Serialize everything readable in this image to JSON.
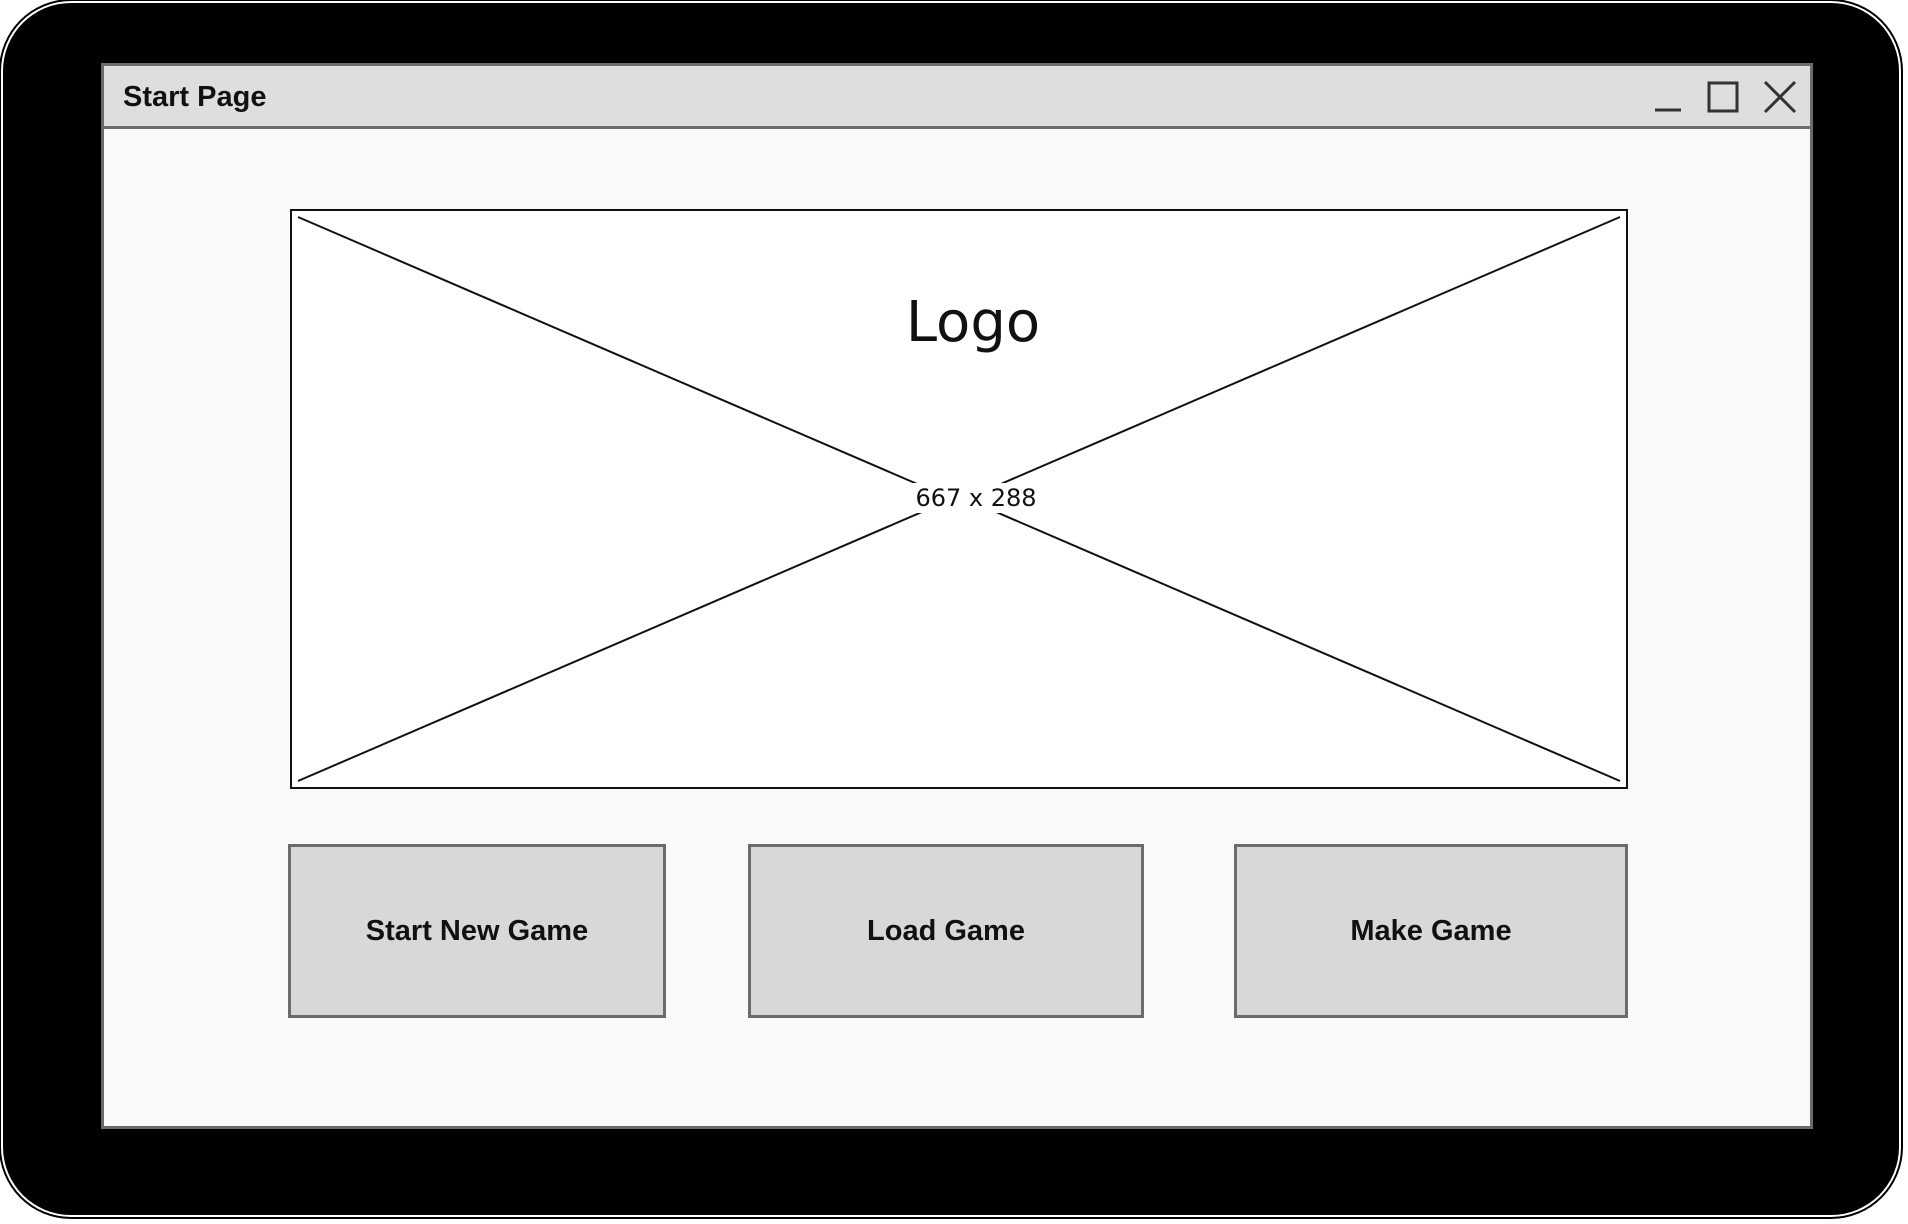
{
  "window": {
    "title": "Start Page",
    "controls": {
      "minimize_icon": "minimize-icon",
      "maximize_icon": "maximize-icon",
      "close_icon": "close-icon"
    }
  },
  "logo": {
    "label": "Logo",
    "placeholder_size": "667 x 288"
  },
  "actions": {
    "start_new_game": "Start New Game",
    "load_game": "Load Game",
    "make_game": "Make Game"
  },
  "colors": {
    "device_frame": "#000000",
    "window_background": "#f9f9f9",
    "titlebar_background": "#dedede",
    "button_background": "#d8d8d8",
    "border": "#6b6b6b"
  }
}
